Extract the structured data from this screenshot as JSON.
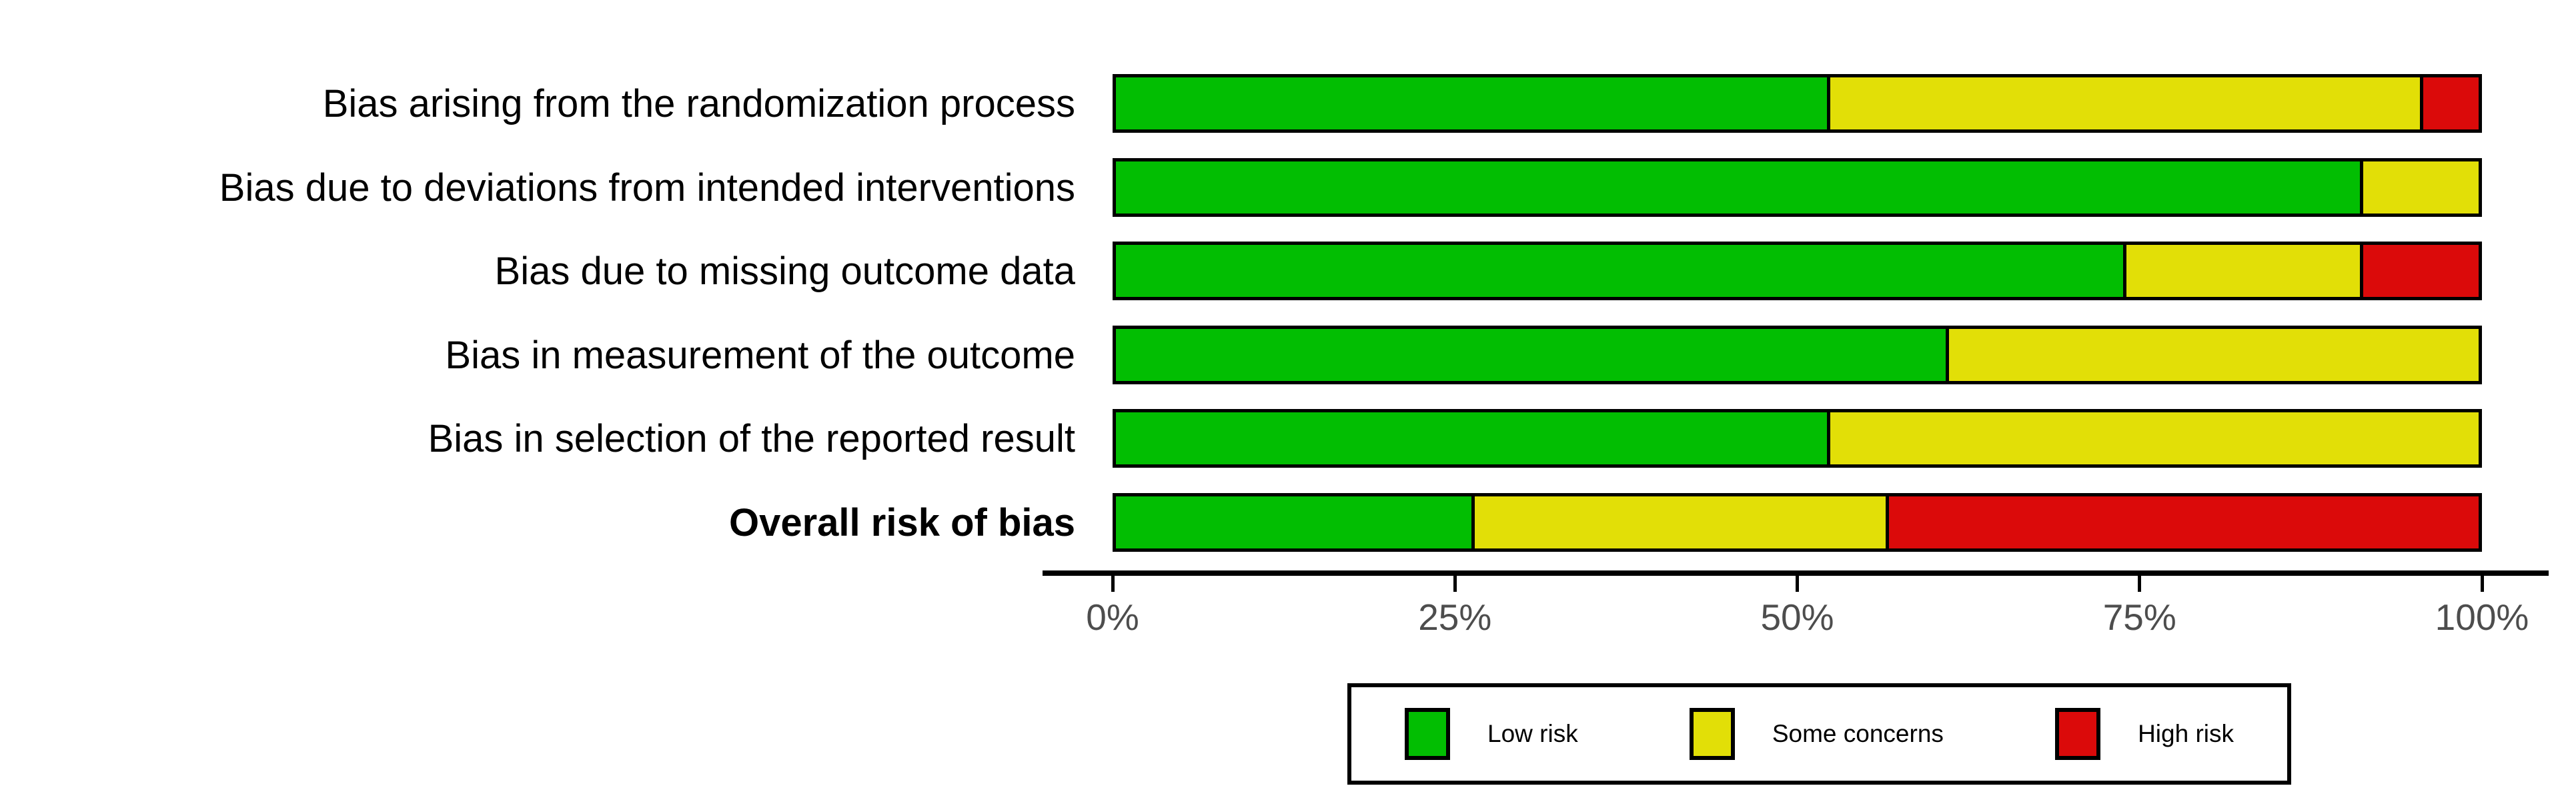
{
  "chart_data": {
    "type": "bar",
    "orientation": "horizontal",
    "stacked": true,
    "title": "",
    "xlabel": "",
    "ylabel": "",
    "xlim": [
      0,
      100
    ],
    "x_ticks": [
      "0%",
      "25%",
      "50%",
      "75%",
      "100%"
    ],
    "grid": false,
    "legend_position": "bottom",
    "categories": [
      "Bias arising from the randomization process",
      "Bias due to deviations from intended interventions",
      "Bias due to missing outcome data",
      "Bias in measurement of the outcome",
      "Bias in selection of the reported result",
      "Overall risk of bias"
    ],
    "bold_category": "Overall risk of bias",
    "series": [
      {
        "name": "Low risk",
        "color": "#02BE02",
        "values": [
          52.2,
          91.3,
          73.9,
          60.9,
          52.2,
          26.1
        ]
      },
      {
        "name": "Some concerns",
        "color": "#E2DF07",
        "values": [
          43.5,
          8.7,
          17.4,
          39.1,
          47.8,
          30.4
        ]
      },
      {
        "name": "High risk",
        "color": "#DB0A0A",
        "values": [
          4.3,
          0.0,
          8.7,
          0.0,
          0.0,
          43.5
        ]
      }
    ]
  },
  "legend": {
    "items": [
      {
        "label": "Low risk",
        "color": "#02BE02"
      },
      {
        "label": "Some concerns",
        "color": "#E2DF07"
      },
      {
        "label": "High risk",
        "color": "#DB0A0A"
      }
    ]
  },
  "colors": {
    "low_risk": "#02BE02",
    "some_concerns": "#E2DF07",
    "high_risk": "#DB0A0A",
    "axis": "#000000",
    "tick_text": "#4d4d4d",
    "background": "#ffffff"
  }
}
